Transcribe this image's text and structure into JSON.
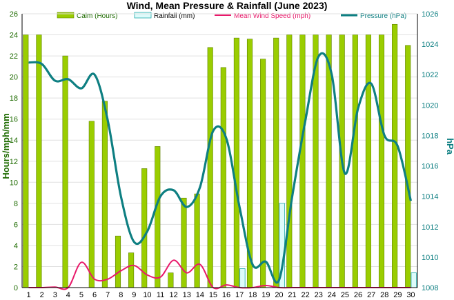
{
  "colors": {
    "calm_fill": "#9ACD00",
    "calm_stroke": "#5E8000",
    "rain_fill": "#DDFBFB",
    "rain_stroke": "#1FA8A8",
    "wind": "#E8196A",
    "pressure": "#0E7F82",
    "left_axis": "#1E6B00",
    "right_axis": "#0E7F82",
    "grid": "#E0E0E0",
    "axis": "#000000"
  },
  "chart_data": {
    "type": "bar",
    "title": "Wind, Mean Pressure & Rainfall (June 2023)",
    "ylabel": "Hours/mph/mm",
    "y2label": "hPa",
    "ylim": [
      0,
      26
    ],
    "y2lim": [
      1008,
      1026
    ],
    "yticks": [
      "0",
      "2",
      "4",
      "6",
      "8",
      "10",
      "12",
      "14",
      "16",
      "18",
      "20",
      "22",
      "24",
      "26"
    ],
    "y2ticks": [
      "1008",
      "1010",
      "1012",
      "1014",
      "1016",
      "1018",
      "1020",
      "1022",
      "1024",
      "1026"
    ],
    "grid": true,
    "legend_position": "top",
    "categories": [
      "1",
      "2",
      "3",
      "4",
      "5",
      "6",
      "7",
      "8",
      "9",
      "10",
      "11",
      "12",
      "13",
      "14",
      "15",
      "16",
      "17",
      "18",
      "19",
      "20",
      "21",
      "22",
      "23",
      "24",
      "25",
      "26",
      "27",
      "28",
      "29",
      "30"
    ],
    "series": [
      {
        "name": "Calm (Hours)",
        "kind": "bar",
        "axis": "left",
        "values": [
          24,
          24,
          0,
          22,
          0,
          15.8,
          17.7,
          4.9,
          3.3,
          11.3,
          13.4,
          1.4,
          8.5,
          8.9,
          22.8,
          20.9,
          23.7,
          23.6,
          21.7,
          23.7,
          24,
          24,
          24,
          24,
          24,
          24,
          24,
          24,
          25,
          23
        ]
      },
      {
        "name": "Rainfall (mm)",
        "kind": "bar",
        "axis": "left",
        "values": [
          0,
          0,
          0,
          0,
          0,
          0,
          0,
          0,
          0,
          0,
          0,
          0,
          0,
          0,
          0,
          0,
          1.8,
          0,
          0,
          8,
          0,
          0,
          0,
          0,
          0,
          0,
          0,
          0,
          0,
          1.4
        ]
      },
      {
        "name": "Mean Wind Speed (mph)",
        "kind": "line",
        "axis": "left",
        "values": [
          0,
          0,
          0.05,
          0,
          2.4,
          0.8,
          0.8,
          1.6,
          2.1,
          1.2,
          1.0,
          2.6,
          1.4,
          2.2,
          0,
          0.25,
          0,
          0,
          0.2,
          0,
          0,
          0,
          0,
          0,
          0,
          0,
          0,
          0,
          0,
          0
        ]
      },
      {
        "name": "Pressure (hPa)",
        "kind": "line",
        "axis": "right",
        "values": [
          1022.8,
          1022.7,
          1021.6,
          1021.7,
          1021.1,
          1022.0,
          1019.0,
          1014.0,
          1011.0,
          1011.7,
          1014.0,
          1014.4,
          1013.3,
          1014.6,
          1018.3,
          1017.8,
          1013.3,
          1009.5,
          1009.7,
          1008.5,
          1014.0,
          1019.0,
          1023.2,
          1022.0,
          1015.5,
          1019.8,
          1021.4,
          1018.0,
          1017.3,
          1013.7
        ]
      }
    ]
  }
}
